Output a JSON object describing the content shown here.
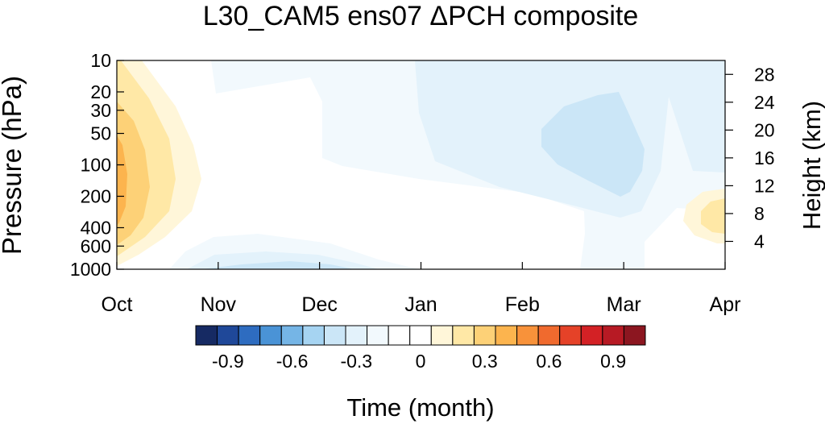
{
  "chart_data": {
    "type": "heatmap",
    "title": "L30_CAM5 ens07 ΔPCH composite",
    "xlabel": "Time (month)",
    "ylabel": "Pressure (hPa)",
    "y2label": "Height (km)",
    "x_categories": [
      "Oct",
      "Nov",
      "Dec",
      "Jan",
      "Feb",
      "Mar",
      "Apr"
    ],
    "y_ticks_pressure": [
      "10",
      "20",
      "30",
      "50",
      "100",
      "200",
      "400",
      "600",
      "1000"
    ],
    "y_ticks_pressure_values": [
      10,
      20,
      30,
      50,
      100,
      200,
      400,
      600,
      1000
    ],
    "y2_ticks_height": [
      "4",
      "8",
      "12",
      "16",
      "20",
      "24",
      "28"
    ],
    "y2_ticks_height_values": [
      4,
      8,
      12,
      16,
      20,
      24,
      28
    ],
    "ylim_pressure": [
      1000,
      10
    ],
    "y_scale": "log",
    "grid": false,
    "colorbar": {
      "placement": "bottom",
      "levels": [
        -1.05,
        -0.95,
        -0.85,
        -0.75,
        -0.65,
        -0.55,
        -0.45,
        -0.35,
        -0.25,
        -0.15,
        -0.05,
        0.05,
        0.15,
        0.25,
        0.35,
        0.45,
        0.55,
        0.65,
        0.75,
        0.85,
        0.95,
        1.05
      ],
      "colors": [
        "#162a63",
        "#1f4899",
        "#2e6cc0",
        "#4a93d6",
        "#75b5e6",
        "#a6d4f2",
        "#cbe6f7",
        "#e3f2fb",
        "#f2f9fd",
        "#ffffff",
        "#ffffff",
        "#fff6d9",
        "#ffe8a6",
        "#fdd177",
        "#fcb44e",
        "#f8923a",
        "#f06a2e",
        "#e54228",
        "#d32125",
        "#b71a24",
        "#8c1620"
      ],
      "tick_labels": [
        "-0.9",
        "-0.6",
        "-0.3",
        "0",
        "0.3",
        "0.6",
        "0.9"
      ],
      "tick_values": [
        -0.9,
        -0.6,
        -0.3,
        0,
        0.3,
        0.6,
        0.9
      ]
    },
    "features": [
      {
        "sign": "positive",
        "peak": 0.45,
        "month": "Oct",
        "pressure_range_hPa": [
          10,
          600
        ]
      },
      {
        "sign": "positive",
        "peak": 0.15,
        "month": "late Mar - Apr",
        "pressure_range_hPa": [
          200,
          500
        ]
      },
      {
        "sign": "negative",
        "peak": -0.25,
        "month": "Feb - Mar",
        "pressure_range_hPa": [
          25,
          250
        ]
      },
      {
        "sign": "negative",
        "peak": -0.15,
        "month": "Jan - Mar",
        "pressure_range_hPa": [
          10,
          300
        ]
      },
      {
        "sign": "negative",
        "peak": -0.25,
        "month": "Nov - Dec",
        "pressure_range_hPa": [
          800,
          1000
        ]
      }
    ]
  }
}
